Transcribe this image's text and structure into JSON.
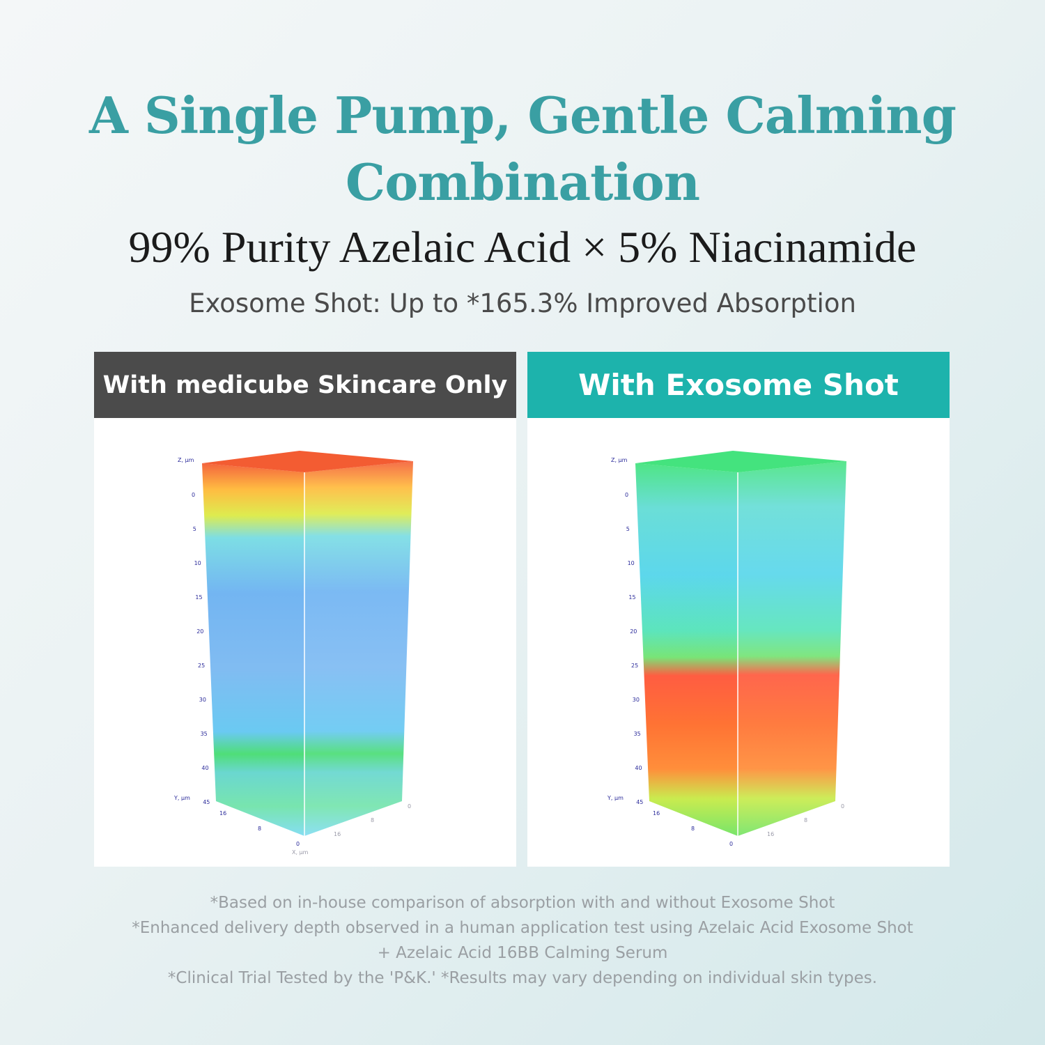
{
  "title": {
    "line1": "A Single Pump, Gentle Calming",
    "line2": "Combination"
  },
  "subtitle": "99% Purity Azelaic Acid × 5% Niacinamide",
  "tagline": "Exosome Shot: Up to *165.3% Improved Absorption",
  "panels": [
    {
      "header": "With medicube Skincare Only"
    },
    {
      "header": "With Exosome Shot"
    }
  ],
  "axes": {
    "z_label": "Z, µm",
    "z_ticks": [
      "0",
      "5",
      "10",
      "15",
      "20",
      "25",
      "30",
      "35",
      "40",
      "45"
    ],
    "y_label": "Y, µm",
    "y_ticks": [
      "16",
      "8",
      "0"
    ],
    "x_ticks": [
      "0",
      "8",
      "16"
    ],
    "x_label": "X, µm"
  },
  "colors": {
    "brand_teal": "#1db3ac",
    "title_teal": "#3a9fa3",
    "dark_header": "#4b4b4b"
  },
  "footnotes": [
    "*Based on in-house comparison of absorption with and without Exosome Shot",
    "*Enhanced delivery depth observed in a human application test using Azelaic Acid Exosome Shot",
    "+ Azelaic Acid 16BB Calming Serum",
    "*Clinical Trial Tested by the 'P&K.' *Results may vary depending on individual skin types."
  ]
}
